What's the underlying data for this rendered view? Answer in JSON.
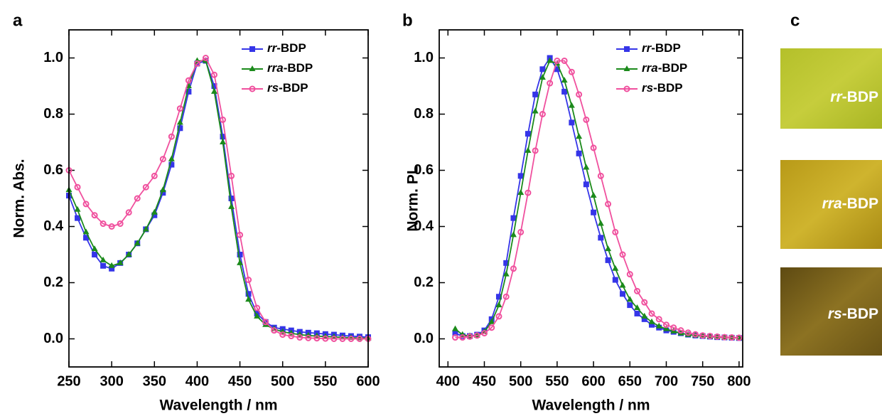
{
  "chart_data": [
    {
      "type": "line",
      "panel_label": "a",
      "x_label": "Wavelength / nm",
      "y_label": "Norm. Abs.",
      "xlim": [
        250,
        600
      ],
      "ylim": [
        -0.1,
        1.1
      ],
      "xticks": [
        250,
        300,
        350,
        400,
        450,
        500,
        550,
        600
      ],
      "yticks": [
        {
          "value": 0,
          "label": "0.0"
        },
        0.2,
        0.4,
        0.6,
        0.8,
        {
          "value": 1,
          "label": "1.0"
        }
      ],
      "legend": "top-right",
      "x": [
        250,
        260,
        270,
        280,
        290,
        300,
        310,
        320,
        330,
        340,
        350,
        360,
        370,
        380,
        390,
        400,
        410,
        420,
        430,
        440,
        450,
        460,
        470,
        480,
        490,
        500,
        510,
        520,
        530,
        540,
        550,
        560,
        570,
        580,
        590,
        600
      ],
      "series": [
        {
          "name": "rr-BDP",
          "color": "#3535e8",
          "marker": "square",
          "values": [
            0.51,
            0.43,
            0.36,
            0.3,
            0.26,
            0.25,
            0.27,
            0.3,
            0.34,
            0.39,
            0.44,
            0.52,
            0.62,
            0.75,
            0.88,
            0.98,
            0.99,
            0.9,
            0.72,
            0.5,
            0.3,
            0.16,
            0.09,
            0.06,
            0.04,
            0.035,
            0.03,
            0.025,
            0.022,
            0.02,
            0.017,
            0.015,
            0.012,
            0.01,
            0.008,
            0.006
          ]
        },
        {
          "name": "rra-BDP",
          "color": "#1b8a1b",
          "marker": "triangle",
          "values": [
            0.53,
            0.46,
            0.38,
            0.32,
            0.28,
            0.26,
            0.27,
            0.3,
            0.34,
            0.39,
            0.45,
            0.53,
            0.64,
            0.77,
            0.9,
            0.99,
            0.99,
            0.88,
            0.7,
            0.47,
            0.27,
            0.14,
            0.08,
            0.05,
            0.035,
            0.025,
            0.02,
            0.015,
            0.012,
            0.01,
            0.008,
            0.007,
            0.005,
            0.004,
            0.003,
            0.002
          ]
        },
        {
          "name": "rs-BDP",
          "color": "#f0509e",
          "marker": "circle",
          "values": [
            0.6,
            0.54,
            0.48,
            0.44,
            0.41,
            0.4,
            0.41,
            0.45,
            0.5,
            0.54,
            0.58,
            0.64,
            0.72,
            0.82,
            0.92,
            0.98,
            1.0,
            0.94,
            0.78,
            0.58,
            0.37,
            0.21,
            0.11,
            0.06,
            0.03,
            0.015,
            0.01,
            0.005,
            0.003,
            0.002,
            0.001,
            0,
            0,
            0,
            0,
            0
          ]
        }
      ]
    },
    {
      "type": "line",
      "panel_label": "b",
      "x_label": "Wavelength / nm",
      "y_label": "Norm. PL",
      "xlim": [
        388,
        805
      ],
      "ylim": [
        -0.1,
        1.1
      ],
      "xticks": [
        400,
        450,
        500,
        550,
        600,
        650,
        700,
        750,
        800
      ],
      "yticks": [
        {
          "value": 0,
          "label": "0.0"
        },
        0.2,
        0.4,
        0.6,
        0.8,
        {
          "value": 1,
          "label": "1.0"
        }
      ],
      "legend": "top-right",
      "x": [
        410,
        420,
        430,
        440,
        450,
        460,
        470,
        480,
        490,
        500,
        510,
        520,
        530,
        540,
        550,
        560,
        570,
        580,
        590,
        600,
        610,
        620,
        630,
        640,
        650,
        660,
        670,
        680,
        690,
        700,
        710,
        720,
        730,
        740,
        750,
        760,
        770,
        780,
        790,
        800
      ],
      "series": [
        {
          "name": "rr-BDP",
          "color": "#3535e8",
          "marker": "square",
          "values": [
            0.02,
            0.01,
            0.01,
            0.015,
            0.03,
            0.07,
            0.15,
            0.27,
            0.43,
            0.58,
            0.73,
            0.87,
            0.96,
            1.0,
            0.96,
            0.88,
            0.77,
            0.66,
            0.55,
            0.45,
            0.36,
            0.28,
            0.21,
            0.16,
            0.12,
            0.09,
            0.07,
            0.05,
            0.04,
            0.03,
            0.025,
            0.02,
            0.015,
            0.012,
            0.01,
            0.008,
            0.006,
            0.005,
            0.004,
            0.003
          ]
        },
        {
          "name": "rra-BDP",
          "color": "#1b8a1b",
          "marker": "triangle",
          "values": [
            0.035,
            0.015,
            0.01,
            0.012,
            0.025,
            0.06,
            0.12,
            0.23,
            0.37,
            0.52,
            0.67,
            0.81,
            0.93,
            0.99,
            0.98,
            0.92,
            0.83,
            0.72,
            0.61,
            0.51,
            0.41,
            0.32,
            0.25,
            0.19,
            0.14,
            0.11,
            0.08,
            0.06,
            0.045,
            0.035,
            0.027,
            0.02,
            0.015,
            0.012,
            0.01,
            0.008,
            0.006,
            0.005,
            0.004,
            0.003
          ]
        },
        {
          "name": "rs-BDP",
          "color": "#f0509e",
          "marker": "circle",
          "values": [
            0.005,
            0.005,
            0.008,
            0.012,
            0.02,
            0.04,
            0.08,
            0.15,
            0.25,
            0.38,
            0.52,
            0.67,
            0.8,
            0.91,
            0.99,
            0.99,
            0.95,
            0.87,
            0.78,
            0.68,
            0.58,
            0.48,
            0.38,
            0.3,
            0.23,
            0.17,
            0.13,
            0.09,
            0.07,
            0.05,
            0.04,
            0.03,
            0.022,
            0.016,
            0.012,
            0.01,
            0.008,
            0.006,
            0.005,
            0.004
          ]
        }
      ]
    }
  ],
  "photos": {
    "panel_label": "c",
    "labels": [
      "rr-BDP",
      "rra-BDP",
      "rs-BDP"
    ]
  }
}
